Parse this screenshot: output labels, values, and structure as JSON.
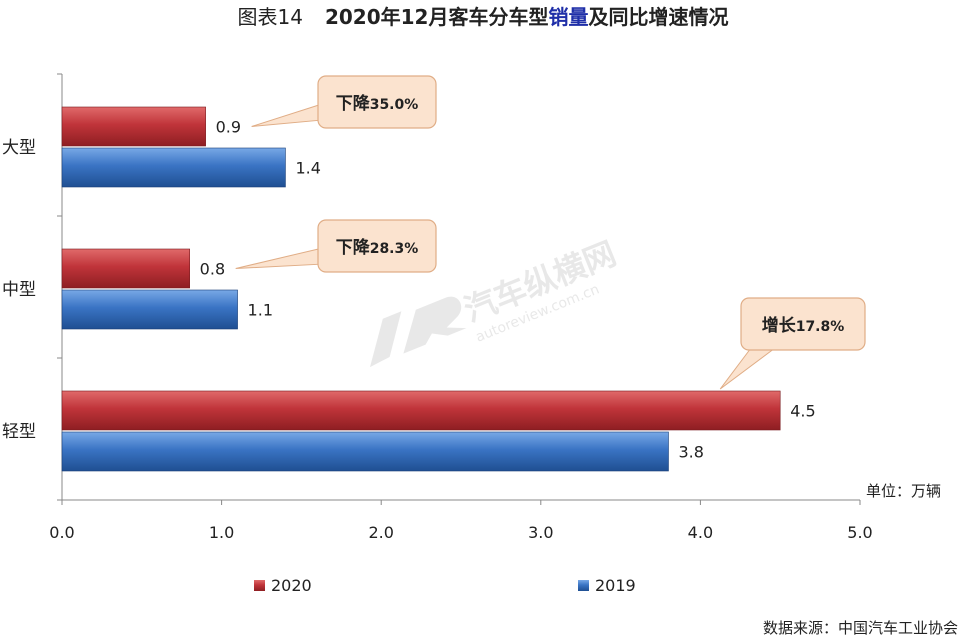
{
  "chart_data": {
    "type": "bar",
    "orientation": "horizontal",
    "title": {
      "prefix": "图表14",
      "main_before": "2020年12月客车分车型",
      "main_highlight": "销量",
      "main_after": "及同比增速情况"
    },
    "categories": [
      "大型",
      "中型",
      "轻型"
    ],
    "series": [
      {
        "name": "2020",
        "color": "#c0343a",
        "values": [
          0.9,
          0.8,
          4.5
        ]
      },
      {
        "name": "2019",
        "color": "#3a74c4",
        "values": [
          1.4,
          1.1,
          3.8
        ]
      }
    ],
    "value_labels": [
      [
        "0.9",
        "1.4"
      ],
      [
        "0.8",
        "1.1"
      ],
      [
        "4.5",
        "3.8"
      ]
    ],
    "xlim": [
      0,
      5
    ],
    "xticks": [
      "0.0",
      "1.0",
      "2.0",
      "3.0",
      "4.0",
      "5.0"
    ],
    "unit_label": "单位：万辆",
    "annotations": [
      {
        "category": "大型",
        "prefix": "下降",
        "value": "35.0%"
      },
      {
        "category": "中型",
        "prefix": "下降",
        "value": "28.3%"
      },
      {
        "category": "轻型",
        "prefix": "增长",
        "value": "17.8%"
      }
    ],
    "legend_position": "bottom",
    "grid": false
  },
  "source": "数据来源：中国汽车工业协会",
  "watermark": {
    "cn": "汽车纵横网",
    "en": "autoreview.com.cn"
  },
  "colors": {
    "title_highlight": "#1f2fa8",
    "callout_fill": "#fbe3cf",
    "callout_stroke": "#e0ad86"
  }
}
